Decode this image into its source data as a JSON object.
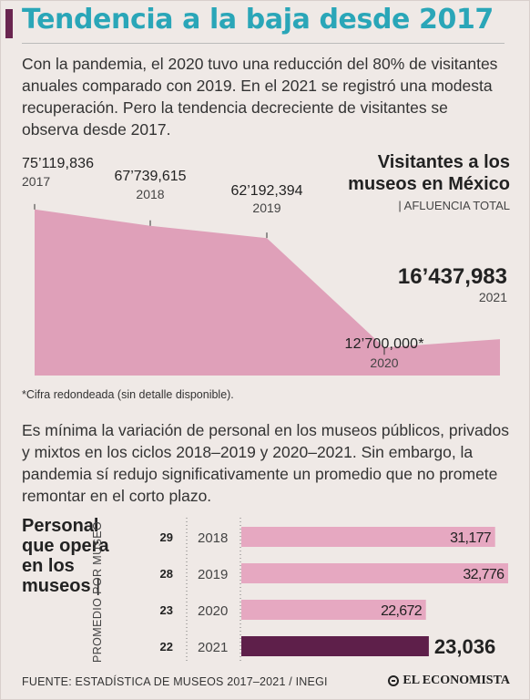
{
  "title": "Tendencia a la baja desde 2017",
  "intro": "Con la pandemia, el 2020 tuvo una reducción del 80% de visitantes anuales comparado con 2019. En el 2021 se registró una modesta recuperación. Pero la tendencia decreciente de visitantes se observa desde 2017.",
  "colors": {
    "title": "#2aa6b8",
    "accent": "#6a2550",
    "area": "#dfa0b9",
    "bar": "#e6a8c1",
    "bar_highlight": "#5e1f4a"
  },
  "chart_data": [
    {
      "type": "area",
      "title": "Visitantes a los museos en México",
      "subtitle": "| AFLUENCIA TOTAL",
      "categories": [
        "2017",
        "2018",
        "2019",
        "2020",
        "2021"
      ],
      "values": [
        75119836,
        67739615,
        62192394,
        12700000,
        16437983
      ],
      "value_labels": [
        "75’119,836",
        "67’739,615",
        "62’192,394",
        "12’700,000*",
        "16’437,983"
      ],
      "highlight_index": 4,
      "ylim": [
        0,
        80000000
      ],
      "grid": false,
      "footnote": "*Cifra redondeada (sin detalle disponible)."
    },
    {
      "type": "bar",
      "orientation": "horizontal",
      "title": "Personal que opera en los museos",
      "axis_label": "PROMEDIO POR MUSEO",
      "categories": [
        "2018",
        "2019",
        "2020",
        "2021"
      ],
      "values": [
        31177,
        32776,
        22672,
        23036
      ],
      "value_labels": [
        "31,177",
        "32,776",
        "22,672",
        "23,036"
      ],
      "averages": [
        29,
        28,
        23,
        22
      ],
      "highlight_index": 3,
      "xlim": [
        0,
        33000
      ],
      "grid": false
    }
  ],
  "intro2": "Es mínima la variación de personal en los museos públicos, privados y mixtos en los ciclos 2018–2019 y 2020–2021. Sin embargo, la pandemia sí redujo significativamente un promedio que no promete remontar en el corto plazo.",
  "footer": {
    "source": "FUENTE: ESTADÍSTICA DE MUSEOS 2017–2021 / INEGI",
    "logo": "EL ECONOMISTA"
  }
}
